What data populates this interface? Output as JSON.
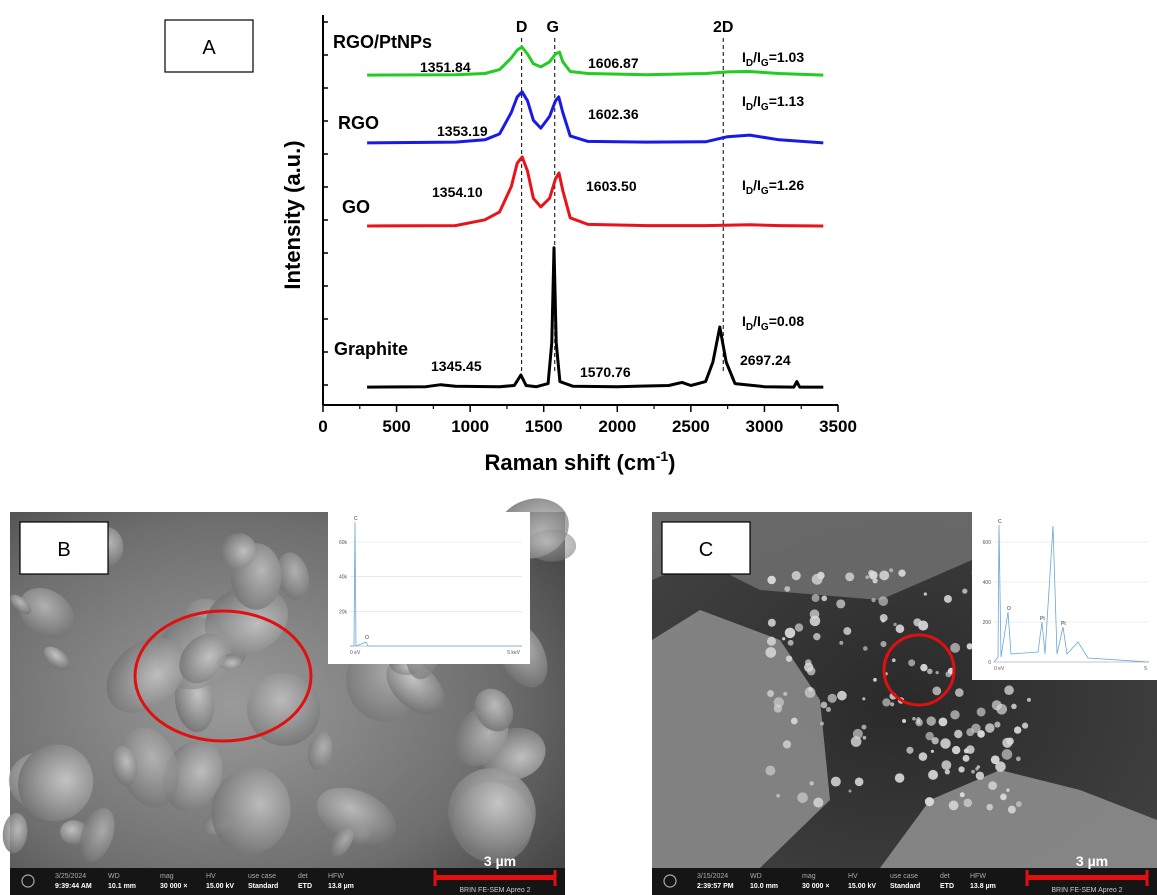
{
  "chart_data": {
    "type": "line",
    "panel_label": "A",
    "ylabel": "Intensity (a.u.)",
    "xlabel": [
      "Raman shift (cm",
      "-1",
      ")"
    ],
    "xlim": [
      0,
      3500
    ],
    "xticks": [
      0,
      500,
      1000,
      1500,
      2000,
      2500,
      3000,
      3500
    ],
    "ylim": [
      0,
      10
    ],
    "vlines": [
      {
        "label": "D",
        "x": 1350
      },
      {
        "label": "G",
        "x": 1575
      },
      {
        "label": "2D",
        "x": 2720
      }
    ],
    "series": [
      {
        "name": "RGO/PtNPs",
        "color": "#22cc22",
        "x": [
          300,
          900,
          1100,
          1200,
          1280,
          1320,
          1352,
          1390,
          1430,
          1480,
          1540,
          1580,
          1607,
          1630,
          1680,
          1800,
          2200,
          2600,
          2750,
          2900,
          3100,
          3400
        ],
        "values": [
          8.46,
          8.47,
          8.5,
          8.6,
          8.9,
          9.1,
          9.18,
          9.0,
          8.75,
          8.67,
          8.8,
          9.0,
          9.05,
          8.8,
          8.55,
          8.5,
          8.47,
          8.5,
          8.54,
          8.55,
          8.5,
          8.46
        ],
        "peak_labels": [
          "1351.84",
          "1606.87"
        ],
        "ratio": [
          "I",
          "D",
          "/I",
          "G",
          "=1.03"
        ]
      },
      {
        "name": "RGO",
        "color": "#1a1ae6",
        "x": [
          300,
          900,
          1100,
          1200,
          1280,
          1320,
          1353,
          1390,
          1430,
          1480,
          1540,
          1580,
          1602,
          1630,
          1680,
          1800,
          2200,
          2600,
          2750,
          2900,
          3100,
          3400
        ],
        "values": [
          6.72,
          6.74,
          6.8,
          6.95,
          7.5,
          7.9,
          8.03,
          7.8,
          7.3,
          7.1,
          7.4,
          7.8,
          7.9,
          7.5,
          6.9,
          6.76,
          6.74,
          6.75,
          6.88,
          6.92,
          6.8,
          6.72
        ],
        "peak_labels": [
          "1353.19",
          "1602.36"
        ],
        "ratio": [
          "I",
          "D",
          "/I",
          "G",
          "=1.13"
        ]
      },
      {
        "name": "GO",
        "color": "#e8141b",
        "x": [
          300,
          900,
          1100,
          1200,
          1280,
          1320,
          1354,
          1390,
          1430,
          1480,
          1540,
          1580,
          1604,
          1630,
          1680,
          1800,
          2200,
          2600,
          2900,
          3100,
          3400
        ],
        "values": [
          4.59,
          4.6,
          4.75,
          4.95,
          5.6,
          6.2,
          6.36,
          6.0,
          5.3,
          5.08,
          5.3,
          5.8,
          5.95,
          5.5,
          4.8,
          4.63,
          4.6,
          4.6,
          4.62,
          4.6,
          4.59
        ],
        "peak_labels": [
          "1354.10",
          "1603.50"
        ],
        "ratio": [
          "I",
          "D",
          "/I",
          "G",
          "=1.26"
        ]
      },
      {
        "name": "Graphite",
        "color": "#000000",
        "x": [
          300,
          700,
          800,
          900,
          1200,
          1300,
          1345,
          1380,
          1450,
          1530,
          1555,
          1570,
          1585,
          1610,
          1700,
          2000,
          2350,
          2440,
          2500,
          2600,
          2650,
          2697,
          2740,
          2800,
          3000,
          3200,
          3220,
          3240,
          3400
        ],
        "values": [
          0.46,
          0.47,
          0.52,
          0.48,
          0.47,
          0.5,
          0.77,
          0.5,
          0.47,
          0.55,
          1.6,
          4.03,
          1.6,
          0.6,
          0.48,
          0.47,
          0.5,
          0.58,
          0.5,
          0.6,
          1.1,
          2.0,
          1.1,
          0.55,
          0.47,
          0.46,
          0.6,
          0.46,
          0.46
        ],
        "peak_labels": [
          "1345.45",
          "1570.76",
          "2697.24"
        ],
        "ratio": [
          "I",
          "D",
          "/I",
          "G",
          "=0.08"
        ]
      }
    ]
  },
  "panels": [
    {
      "label": "B",
      "scale": "3 µm",
      "instrument": "BRIN FE-SEM Apreo 2",
      "info": [
        [
          "3/25/2024",
          "9:39:44 AM"
        ],
        [
          "WD",
          "10.1 mm"
        ],
        [
          "mag",
          "30 000 ×"
        ],
        [
          "HV",
          "15.00 kV"
        ],
        [
          "use case",
          "Standard"
        ],
        [
          "det",
          "ETD"
        ],
        [
          "HFW",
          "13.8 µm"
        ]
      ],
      "eds": {
        "yticks": [
          "60k",
          "40k",
          "20k"
        ],
        "x_start": "0 eV",
        "x_end": "5 keV",
        "peaks": [
          "C",
          "O"
        ]
      }
    },
    {
      "label": "C",
      "scale": "3 µm",
      "instrument": "BRIN FE-SEM Apreo 2",
      "info": [
        [
          "3/15/2024",
          "2:39:57 PM"
        ],
        [
          "WD",
          "10.0 mm"
        ],
        [
          "mag",
          "30 000 ×"
        ],
        [
          "HV",
          "15.00 kV"
        ],
        [
          "use case",
          "Standard"
        ],
        [
          "det",
          "ETD"
        ],
        [
          "HFW",
          "13.8 µm"
        ]
      ],
      "eds": {
        "yticks": [
          "600",
          "400",
          "200",
          "0"
        ],
        "x_start": "0 eV",
        "x_end": "5",
        "peaks": [
          "C",
          "O",
          "Pt",
          "Pt"
        ]
      }
    }
  ]
}
